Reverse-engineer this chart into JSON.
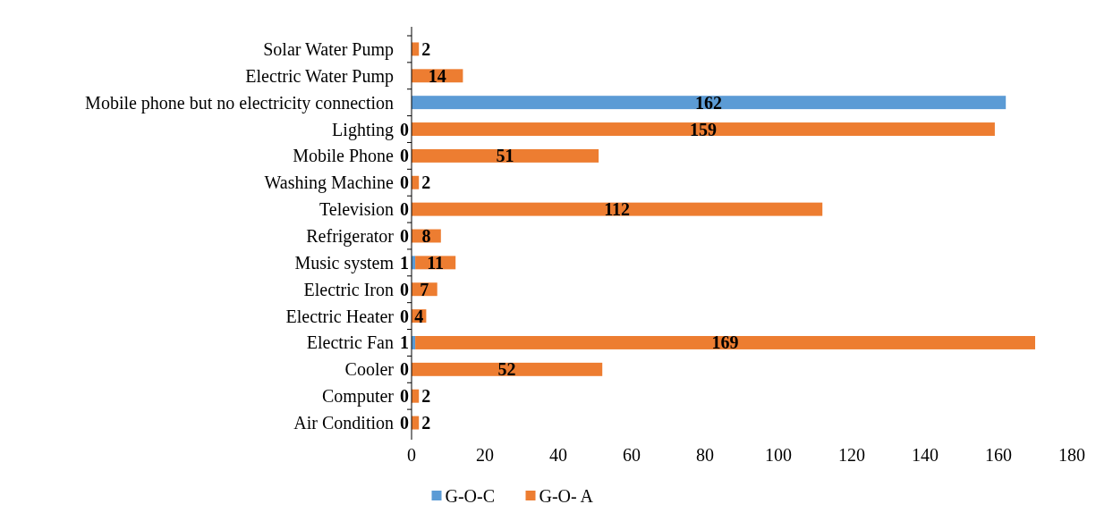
{
  "chart_data": {
    "type": "bar",
    "orientation": "horizontal",
    "stacked": true,
    "data_labels": true,
    "legend": "bottom",
    "grid": false,
    "categories": [
      "Solar Water Pump",
      "Electric Water Pump",
      "Mobile phone but no electricity connection",
      "Lighting",
      "Mobile Phone",
      "Washing Machine",
      "Television",
      "Refrigerator",
      "Music system",
      "Electric Iron",
      "Electric Heater",
      "Electric Fan",
      "Cooler",
      "Computer",
      "Air Condition"
    ],
    "series": [
      {
        "name": "G-O-C",
        "color": "#5b9bd5",
        "values": [
          null,
          null,
          162,
          0,
          0,
          0,
          0,
          0,
          1,
          0,
          0,
          1,
          0,
          0,
          0
        ]
      },
      {
        "name": "G-O- A",
        "color": "#ed7d31",
        "values": [
          2,
          14,
          null,
          159,
          51,
          2,
          112,
          8,
          11,
          7,
          4,
          169,
          52,
          2,
          2
        ]
      }
    ],
    "xlim": [
      0,
      180
    ],
    "xticks": [
      0,
      20,
      40,
      60,
      80,
      100,
      120,
      140,
      160,
      180
    ]
  }
}
